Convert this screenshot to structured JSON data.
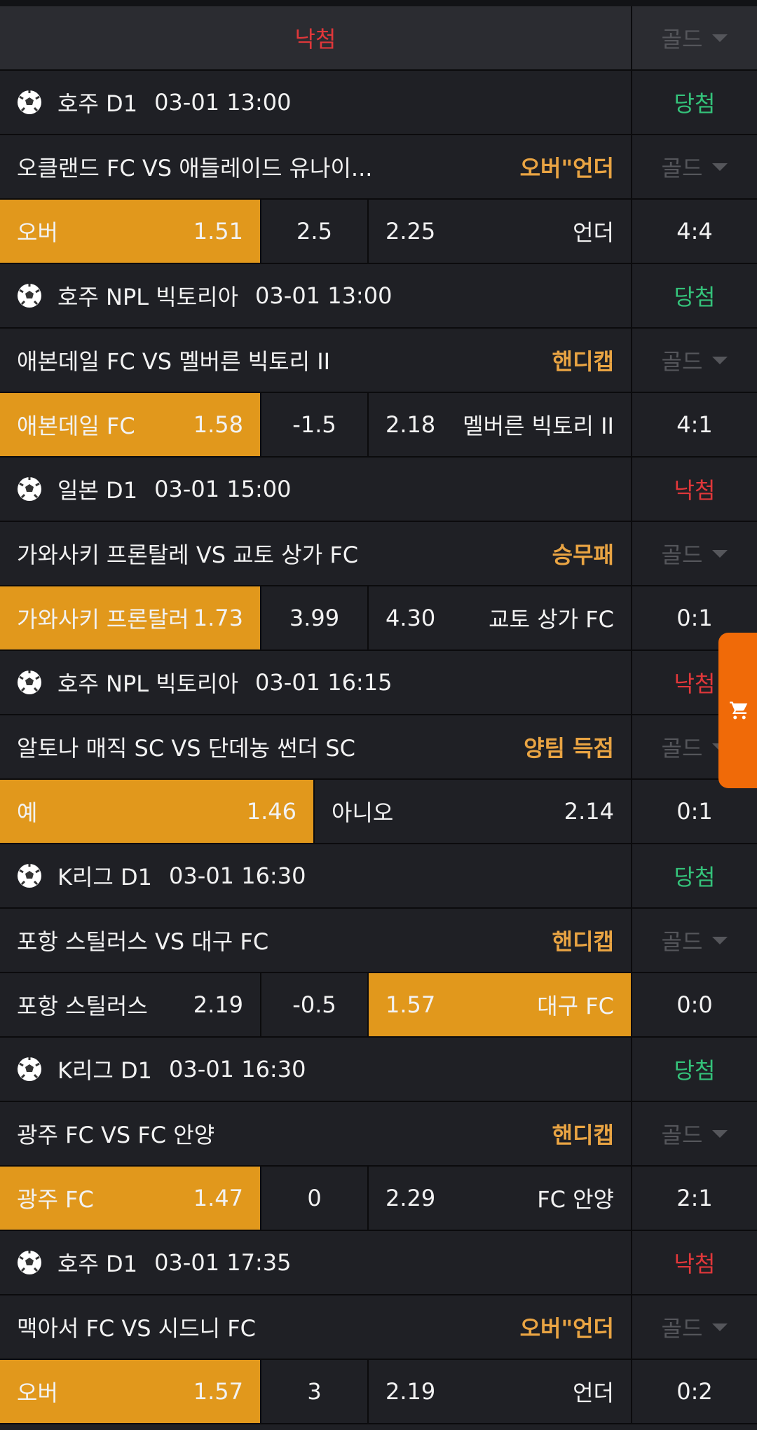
{
  "header": {
    "status": "낙첨",
    "status_color": "#e0373a",
    "gold": "골드"
  },
  "matches": [
    {
      "league": "호주 D1",
      "datetime": "03-01 13:00",
      "result": "당첨",
      "result_color": "#34c27a",
      "teams": "오클랜드 FC VS 애들레이드 유나이...",
      "market": "오버\"언더",
      "gold": "골드",
      "bet": {
        "left": {
          "label": "오버",
          "odds": "1.51"
        },
        "line": "2.5",
        "right": {
          "odds": "2.25",
          "label": "언더"
        },
        "selected": "left"
      },
      "score": "4:4"
    },
    {
      "league": "호주 NPL 빅토리아",
      "datetime": "03-01 13:00",
      "result": "당첨",
      "result_color": "#34c27a",
      "teams": "애본데일 FC VS 멜버른 빅토리 II",
      "market": "핸디캡",
      "gold": "골드",
      "bet": {
        "left": {
          "label": "애본데일 FC",
          "odds": "1.58"
        },
        "line": "-1.5",
        "right": {
          "odds": "2.18",
          "label": "멜버른 빅토리 II"
        },
        "selected": "left"
      },
      "score": "4:1"
    },
    {
      "league": "일본 D1",
      "datetime": "03-01 15:00",
      "result": "낙첨",
      "result_color": "#e0373a",
      "teams": "가와사키 프론탈레 VS 교토 상가 FC",
      "market": "승무패",
      "gold": "골드",
      "bet": {
        "left": {
          "label": "가와사키 프론탈러",
          "odds": "1.73"
        },
        "line": "3.99",
        "right": {
          "odds": "4.30",
          "label": "교토 상가 FC"
        },
        "selected": "left"
      },
      "score": "0:1"
    },
    {
      "league": "호주 NPL 빅토리아",
      "datetime": "03-01 16:15",
      "result": "낙첨",
      "result_color": "#e0373a",
      "teams": "알토나 매직 SC VS 단데농 썬더 SC",
      "market": "양팀 득점",
      "gold": "골드",
      "bet": {
        "left": {
          "label": "예",
          "odds": "1.46"
        },
        "right": {
          "label": "아니오",
          "odds": "2.14"
        },
        "selected": "left"
      },
      "score": "0:1"
    },
    {
      "league": "K리그 D1",
      "datetime": "03-01 16:30",
      "result": "당첨",
      "result_color": "#34c27a",
      "teams": "포항 스틸러스 VS 대구 FC",
      "market": "핸디캡",
      "gold": "골드",
      "bet": {
        "left": {
          "label": "포항 스틸러스",
          "odds": "2.19"
        },
        "line": "-0.5",
        "right": {
          "odds": "1.57",
          "label": "대구 FC"
        },
        "selected": "right"
      },
      "score": "0:0"
    },
    {
      "league": "K리그 D1",
      "datetime": "03-01 16:30",
      "result": "당첨",
      "result_color": "#34c27a",
      "teams": "광주 FC VS FC 안양",
      "market": "핸디캡",
      "gold": "골드",
      "bet": {
        "left": {
          "label": "광주 FC",
          "odds": "1.47"
        },
        "line": "0",
        "right": {
          "odds": "2.29",
          "label": "FC 안양"
        },
        "selected": "left"
      },
      "score": "2:1"
    },
    {
      "league": "호주 D1",
      "datetime": "03-01 17:35",
      "result": "낙첨",
      "result_color": "#e0373a",
      "teams": "맥아서 FC VS 시드니 FC",
      "market": "오버\"언더",
      "gold": "골드",
      "bet": {
        "left": {
          "label": "오버",
          "odds": "1.57"
        },
        "line": "3",
        "right": {
          "odds": "2.19",
          "label": "언더"
        },
        "selected": "left"
      },
      "score": "0:2"
    }
  ]
}
